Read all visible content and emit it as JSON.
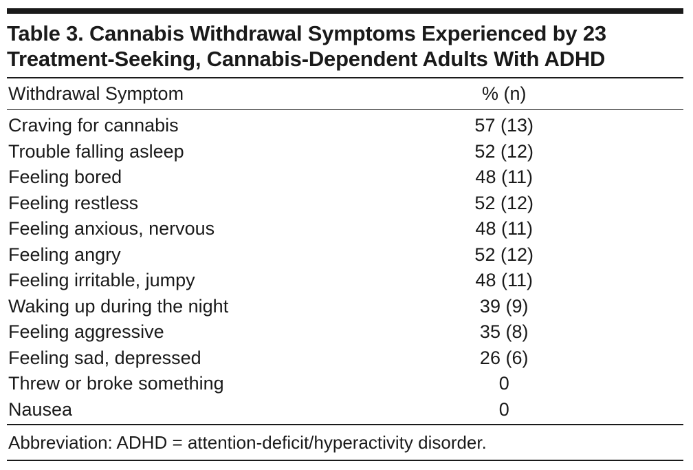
{
  "table": {
    "title_line1": "Table 3. Cannabis Withdrawal Symptoms Experienced by 23",
    "title_line2": "Treatment-Seeking, Cannabis-Dependent Adults With ADHD",
    "header_symptom": "Withdrawal Symptom",
    "header_value": "% (n)",
    "rows": [
      {
        "symptom": "Craving for cannabis",
        "value": "57 (13)"
      },
      {
        "symptom": "Trouble falling asleep",
        "value": "52 (12)"
      },
      {
        "symptom": "Feeling bored",
        "value": "48 (11)"
      },
      {
        "symptom": "Feeling restless",
        "value": "52 (12)"
      },
      {
        "symptom": "Feeling anxious, nervous",
        "value": "48 (11)"
      },
      {
        "symptom": "Feeling angry",
        "value": "52 (12)"
      },
      {
        "symptom": "Feeling irritable, jumpy",
        "value": "48 (11)"
      },
      {
        "symptom": "Waking up during the night",
        "value": "39 (9)"
      },
      {
        "symptom": "Feeling aggressive",
        "value": "35 (8)"
      },
      {
        "symptom": "Feeling sad, depressed",
        "value": "26 (6)"
      },
      {
        "symptom": "Threw or broke something",
        "value": "0"
      },
      {
        "symptom": "Nausea",
        "value": "0"
      }
    ],
    "footnote": "Abbreviation: ADHD = attention-deficit/hyperactivity disorder."
  }
}
